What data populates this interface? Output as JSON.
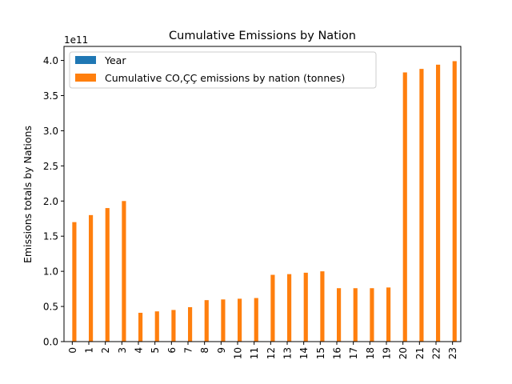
{
  "chart_data": {
    "type": "bar",
    "title": "Cumulative Emissions by Nation",
    "xlabel": "",
    "ylabel": "Emissions totals by Nations",
    "offset_label": "1e11",
    "categories": [
      "0",
      "1",
      "2",
      "3",
      "4",
      "5",
      "6",
      "7",
      "8",
      "9",
      "10",
      "11",
      "12",
      "13",
      "14",
      "15",
      "16",
      "17",
      "18",
      "19",
      "20",
      "21",
      "22",
      "23"
    ],
    "series": [
      {
        "name": "Year",
        "color": "#1f77b4",
        "values": [
          1751,
          1752,
          1753,
          1754,
          1755,
          1756,
          1757,
          1758,
          1759,
          1760,
          1761,
          1762,
          1763,
          1764,
          1765,
          1766,
          1767,
          1768,
          1769,
          1770,
          1771,
          1772,
          1773,
          1774
        ]
      },
      {
        "name": "Cumulative CO,ÇÇ emissions by nation (tonnes)",
        "color": "#ff7f0e",
        "values": [
          170000000000.0,
          180000000000.0,
          190000000000.0,
          200000000000.0,
          41000000000.0,
          43000000000.0,
          45000000000.0,
          49000000000.0,
          59000000000.0,
          60000000000.0,
          61000000000.0,
          62000000000.0,
          95000000000.0,
          96000000000.0,
          98000000000.0,
          100000000000.0,
          76000000000.0,
          76000000000.0,
          76000000000.0,
          77000000000.0,
          383000000000.0,
          388000000000.0,
          394000000000.0,
          399000000000.0
        ]
      }
    ],
    "ylim": [
      0,
      420000000000.0
    ],
    "yticks": [
      {
        "value": 0.0,
        "label": "0.0"
      },
      {
        "value": 50000000000.0,
        "label": "0.5"
      },
      {
        "value": 100000000000.0,
        "label": "1.0"
      },
      {
        "value": 150000000000.0,
        "label": "1.5"
      },
      {
        "value": 200000000000.0,
        "label": "2.0"
      },
      {
        "value": 250000000000.0,
        "label": "2.5"
      },
      {
        "value": 300000000000.0,
        "label": "3.0"
      },
      {
        "value": 350000000000.0,
        "label": "3.5"
      },
      {
        "value": 400000000000.0,
        "label": "4.0"
      }
    ],
    "legend_position": "top-left",
    "grid": false
  }
}
